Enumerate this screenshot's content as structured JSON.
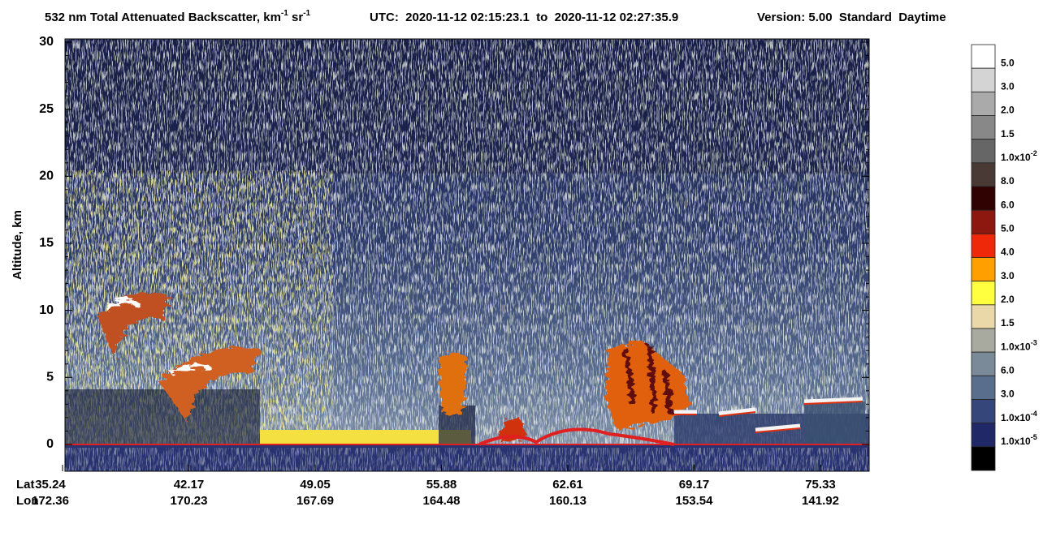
{
  "chart_data": {
    "type": "heatmap",
    "title": {
      "main": "532 nm Total Attenuated Backscatter, km",
      "exp1": "-1",
      "mid": " sr",
      "exp2": "-1"
    },
    "utc": "UTC:  2020-11-12 02:15:23.1  to  2020-11-12 02:27:35.9",
    "version": "Version: 5.00  Standard  Daytime",
    "ylabel": "Altitude, km",
    "ylim": [
      -2,
      30
    ],
    "yticks": [
      0,
      5,
      10,
      15,
      20,
      25,
      30
    ],
    "lat_label": "Lat",
    "lon_label": "Lon",
    "lat": [
      "35.24",
      "42.17",
      "49.05",
      "55.88",
      "62.61",
      "69.17",
      "75.33"
    ],
    "lon": [
      "172.36",
      "170.23",
      "167.69",
      "164.48",
      "160.13",
      "153.54",
      "141.92"
    ],
    "colorbar": {
      "colors": [
        "#ffffff",
        "#d4d4d4",
        "#aaaaaa",
        "#888888",
        "#666666",
        "#4a3a36",
        "#300202",
        "#8c1810",
        "#f0280a",
        "#ffa000",
        "#ffff40",
        "#ead8a8",
        "#a8aaa0",
        "#7a8a98",
        "#586e8c",
        "#34467a",
        "#202868",
        "#000000"
      ],
      "labels": [
        {
          "text": "5.0"
        },
        {
          "text": "3.0"
        },
        {
          "text": "2.0"
        },
        {
          "text": "1.5"
        },
        {
          "text": "1.0x10",
          "exp": "-2"
        },
        {
          "text": "8.0"
        },
        {
          "text": "6.0"
        },
        {
          "text": "5.0"
        },
        {
          "text": "4.0"
        },
        {
          "text": "3.0"
        },
        {
          "text": "2.0"
        },
        {
          "text": "1.5"
        },
        {
          "text": "1.0x10",
          "exp": "-3"
        },
        {
          "text": "6.0"
        },
        {
          "text": "3.0"
        },
        {
          "text": "1.0x10",
          "exp": "-4"
        },
        {
          "text": "1.0x10",
          "exp": "-5"
        },
        null
      ]
    }
  }
}
